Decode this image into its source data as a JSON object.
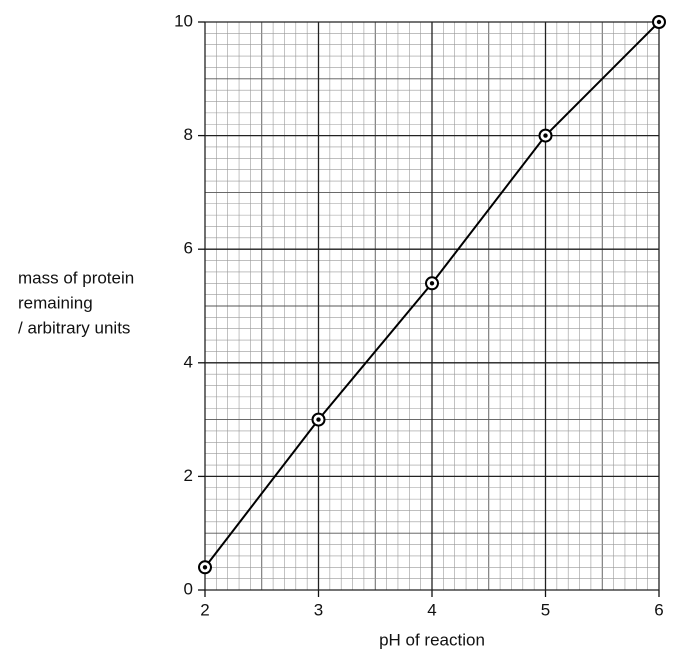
{
  "chart_data": {
    "type": "line",
    "x": [
      2,
      3,
      4,
      5,
      6
    ],
    "values": [
      0.4,
      3,
      5.4,
      8,
      10
    ],
    "color": "#000000",
    "xlabel": "pH of reaction",
    "ylabel": [
      "mass of protein",
      "remaining",
      "/ arbitrary units"
    ],
    "xlim": [
      2,
      6
    ],
    "ylim": [
      0,
      10
    ],
    "xticks": [
      2,
      3,
      4,
      5,
      6
    ],
    "yticks": [
      0,
      2,
      4,
      6,
      8,
      10
    ],
    "grid": true
  }
}
